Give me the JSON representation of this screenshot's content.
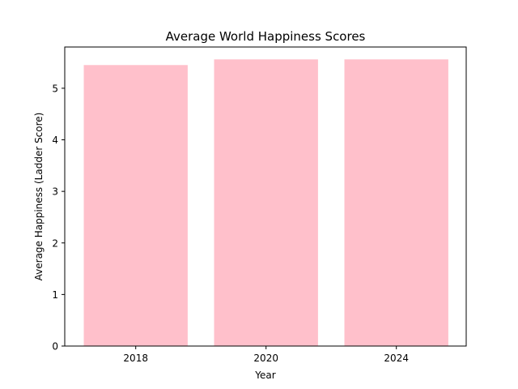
{
  "chart_data": {
    "type": "bar",
    "title": "Average World Happiness Scores",
    "xlabel": "Year",
    "ylabel": "Average Happiness (Ladder Score)",
    "categories": [
      "2018",
      "2020",
      "2024"
    ],
    "values": [
      5.45,
      5.56,
      5.56
    ],
    "ylim": [
      0,
      5.8
    ],
    "yticks": [
      0,
      1,
      2,
      3,
      4,
      5
    ],
    "grid": false,
    "legend": "none",
    "bar_color": "#ffc0cb"
  }
}
